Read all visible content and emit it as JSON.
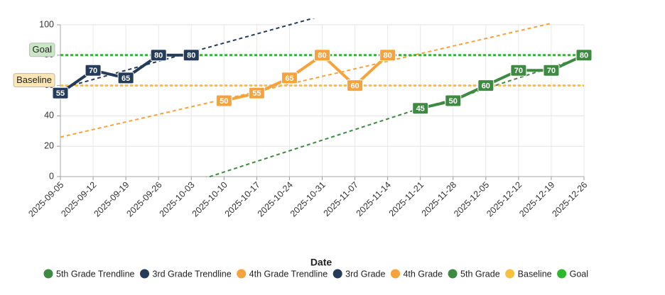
{
  "chart_data": {
    "type": "line",
    "x_label": "Date",
    "categories": [
      "2025-09-05",
      "2025-09-12",
      "2025-09-19",
      "2025-09-26",
      "2025-10-03",
      "2025-10-10",
      "2025-10-17",
      "2025-10-24",
      "2025-10-31",
      "2025-11-07",
      "2025-11-14",
      "2025-11-21",
      "2025-11-28",
      "2025-12-05",
      "2025-12-12",
      "2025-12-19",
      "2025-12-26"
    ],
    "ylim": [
      0,
      100
    ],
    "yticks": [
      0,
      20,
      40,
      60,
      80,
      100
    ],
    "grid": true,
    "series": [
      {
        "name": "5th Grade Trendline",
        "color": "#3d8b40",
        "style": "dashed",
        "values": [
          null,
          null,
          null,
          null,
          -4,
          3,
          10,
          17,
          24,
          31,
          38,
          45,
          51,
          58,
          65,
          72,
          79
        ]
      },
      {
        "name": "3rd Grade Trendline",
        "color": "#243b5a",
        "style": "dashed",
        "values": [
          58,
          64,
          70,
          76,
          82,
          88,
          94,
          100,
          106,
          null,
          null,
          null,
          null,
          null,
          null,
          null,
          null
        ]
      },
      {
        "name": "4th Grade Trendline",
        "color": "#f7a23b",
        "style": "dashed",
        "values": [
          26,
          31,
          36,
          41,
          46,
          51,
          56,
          61,
          66,
          71,
          76,
          81,
          86,
          91,
          96,
          101,
          null
        ]
      },
      {
        "name": "3rd Grade",
        "color": "#243b5a",
        "style": "solid",
        "values": [
          55,
          70,
          65,
          80,
          80,
          null,
          null,
          null,
          null,
          null,
          null,
          null,
          null,
          null,
          null,
          null,
          null
        ]
      },
      {
        "name": "4th Grade",
        "color": "#f7a23b",
        "style": "solid",
        "values": [
          null,
          null,
          null,
          null,
          null,
          50,
          55,
          65,
          80,
          60,
          80,
          null,
          null,
          null,
          null,
          null,
          null
        ]
      },
      {
        "name": "5th Grade",
        "color": "#3d8b40",
        "style": "solid",
        "values": [
          null,
          null,
          null,
          null,
          null,
          null,
          null,
          null,
          null,
          null,
          null,
          45,
          50,
          60,
          70,
          70,
          80
        ]
      },
      {
        "name": "Baseline",
        "color": "#f6c23e",
        "style": "reference",
        "value": 60,
        "label_bg": "#fbe6b4"
      },
      {
        "name": "Goal",
        "color": "#2db82d",
        "style": "reference",
        "value": 80,
        "label_bg": "#c9e7c4"
      }
    ]
  }
}
